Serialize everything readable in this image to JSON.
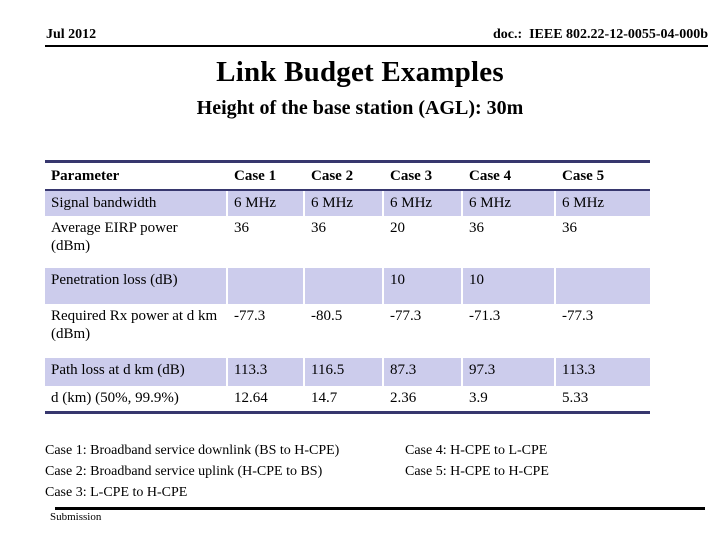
{
  "header": {
    "date": "Jul 2012",
    "doc": "doc.:  IEEE 802.22-12-0055-04-000b"
  },
  "title": "Link Budget Examples",
  "subtitle": "Height of the base station (AGL): 30m",
  "table": {
    "columns": [
      "Parameter",
      "Case 1",
      "Case 2",
      "Case 3",
      "Case 4",
      "Case 5"
    ],
    "rows": [
      {
        "parameter": "Signal bandwidth",
        "values": [
          "6 MHz",
          "6 MHz",
          "6 MHz",
          "6 MHz",
          "6 MHz"
        ],
        "shaded": true
      },
      {
        "parameter": "Average EIRP power (dBm)",
        "values": [
          "36",
          "36",
          "20",
          "36",
          "36"
        ],
        "shaded": false
      },
      {
        "parameter": "Penetration loss (dB)",
        "values": [
          "",
          "",
          "10",
          "10",
          ""
        ],
        "shaded": true
      },
      {
        "parameter": "Required Rx power at d km (dBm)",
        "values": [
          "-77.3",
          "-80.5",
          "-77.3",
          "-71.3",
          "-77.3"
        ],
        "shaded": false
      },
      {
        "parameter": "Path loss at d km (dB)",
        "values": [
          "113.3",
          "116.5",
          "87.3",
          "97.3",
          "113.3"
        ],
        "shaded": true
      },
      {
        "parameter": "d (km) (50%, 99.9%)",
        "values": [
          "12.64",
          "14.7",
          "2.36",
          "3.9",
          "5.33"
        ],
        "shaded": false
      }
    ]
  },
  "notes": {
    "left": [
      "Case 1: Broadband service downlink (BS to H-CPE)",
      "Case 2: Broadband service uplink (H-CPE to BS)",
      "Case 3: L-CPE to H-CPE"
    ],
    "right": [
      "Case 4: H-CPE to L-CPE",
      "Case 5: H-CPE to H-CPE"
    ]
  },
  "footer": {
    "label": "Submission"
  },
  "colors": {
    "row_shade": "#ccccec",
    "table_border": "#37376e",
    "text": "#000000"
  }
}
